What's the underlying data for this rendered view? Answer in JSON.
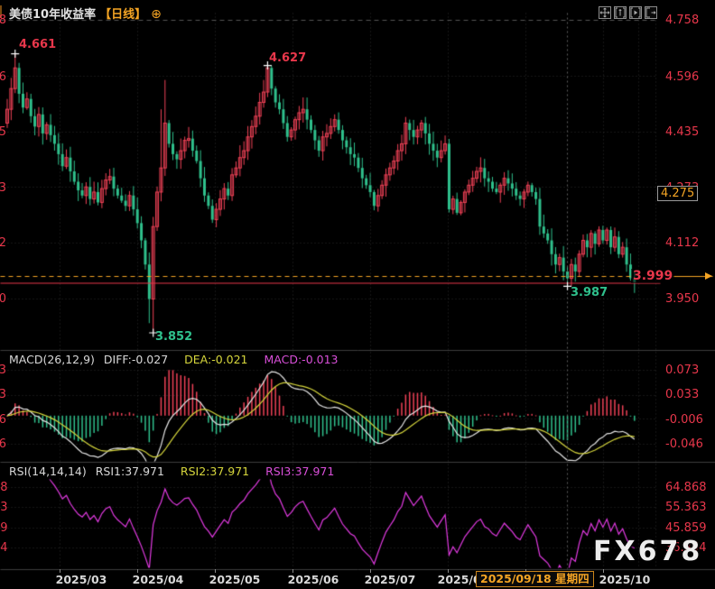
{
  "title": {
    "symbol": "美债10年收益率",
    "period": "【日线】",
    "add_icon": "⊕"
  },
  "toolbar": {
    "icons": [
      "pan-icon",
      "axis-zoom-vertical-icon",
      "axis-play-icon",
      "axis-shift-right-icon"
    ]
  },
  "watermark": "FX678",
  "colors": {
    "background": "#000000",
    "up_candle": "#ef4156",
    "down_candle": "#2fc08c",
    "axis_text": "#e8374b",
    "accent_orange": "#f5a524",
    "dif_line": "#e6e6e6",
    "dea_line": "#d6d63c",
    "rsi_line": "#e23ae2",
    "grid": "#2f2f2f"
  },
  "chart_data": {
    "type": "candlestick",
    "title": "美债10年收益率 日线",
    "x_labels": [
      "2025/03",
      "2025/04",
      "2025/05",
      "2025/06",
      "2025/07",
      "2025/08",
      "2025/10"
    ],
    "selected_date_label": "2025/09/18 星期四",
    "panes": {
      "main": {
        "axis_labels": [
          "4.758",
          "4.596",
          "4.435",
          "4.273",
          "4.112",
          "3.950"
        ],
        "annotations": {
          "high1": "4.661",
          "high2": "4.627",
          "low1": "3.852",
          "low2": "3.987"
        },
        "current_price_label": "3.999",
        "price_box": "4.275",
        "price_lines": [
          {
            "value": 4.02,
            "color": "#f5a524",
            "style": "dashed"
          },
          {
            "value": 3.999,
            "color": "#e8374b",
            "style": "solid"
          }
        ]
      },
      "macd": {
        "header": "MACD(26,12,9)",
        "diff": "DIFF:-0.027",
        "dea": "DEA:-0.021",
        "macd": "MACD:-0.013",
        "axis_labels": [
          "0.073",
          "0.033",
          "-0.006",
          "-0.046"
        ],
        "params": [
          26,
          12,
          9
        ]
      },
      "rsi": {
        "header": "RSI(14,14,14)",
        "rsi1": "RSI1:37.971",
        "rsi2": "RSI2:37.971",
        "rsi3": "RSI3:37.971",
        "axis_labels": [
          "64.868",
          "55.363",
          "45.859",
          "36.354"
        ],
        "params": [
          14,
          14,
          14
        ]
      }
    },
    "series": {
      "first_open": 4.46,
      "closes": [
        4.5,
        4.56,
        4.62,
        4.545,
        4.505,
        4.53,
        4.48,
        4.45,
        4.485,
        4.43,
        4.455,
        4.425,
        4.4,
        4.37,
        4.335,
        4.36,
        4.32,
        4.29,
        4.265,
        4.25,
        4.275,
        4.24,
        4.26,
        4.23,
        4.27,
        4.295,
        4.305,
        4.27,
        4.25,
        4.235,
        4.22,
        4.25,
        4.21,
        4.17,
        4.12,
        4.05,
        3.95,
        4.16,
        4.26,
        4.33,
        4.46,
        4.4,
        4.37,
        4.355,
        4.38,
        4.41,
        4.415,
        4.38,
        4.35,
        4.3,
        4.25,
        4.22,
        4.18,
        4.21,
        4.24,
        4.27,
        4.25,
        4.31,
        4.33,
        4.36,
        4.38,
        4.42,
        4.45,
        4.48,
        4.52,
        4.55,
        4.62,
        4.56,
        4.52,
        4.5,
        4.46,
        4.42,
        4.44,
        4.47,
        4.49,
        4.5,
        4.47,
        4.44,
        4.41,
        4.38,
        4.42,
        4.43,
        4.45,
        4.47,
        4.44,
        4.41,
        4.39,
        4.37,
        4.36,
        4.33,
        4.3,
        4.28,
        4.26,
        4.22,
        4.25,
        4.28,
        4.31,
        4.33,
        4.35,
        4.38,
        4.4,
        4.46,
        4.44,
        4.42,
        4.44,
        4.46,
        4.43,
        4.4,
        4.38,
        4.36,
        4.38,
        4.4,
        4.21,
        4.24,
        4.2,
        4.23,
        4.26,
        4.28,
        4.3,
        4.32,
        4.33,
        4.3,
        4.29,
        4.27,
        4.26,
        4.28,
        4.3,
        4.285,
        4.27,
        4.25,
        4.24,
        4.26,
        4.28,
        4.26,
        4.24,
        4.16,
        4.14,
        4.12,
        4.08,
        4.05,
        4.07,
        4.03,
        4.01,
        4.05,
        4.03,
        4.08,
        4.12,
        4.1,
        4.14,
        4.11,
        4.15,
        4.12,
        4.15,
        4.1,
        4.13,
        4.08,
        4.1,
        4.05,
        4.01,
        3.999
      ],
      "wick_overrides": {
        "2": {
          "high": 4.661
        },
        "36": {
          "low": 3.88
        },
        "37": {
          "low": 3.852
        },
        "39": {
          "high": 4.5
        },
        "40": {
          "high": 4.585
        },
        "66": {
          "high": 4.627
        },
        "142": {
          "low": 3.987
        }
      },
      "markers": [
        {
          "index": 2,
          "price": 4.661
        },
        {
          "index": 37,
          "price": 3.852
        },
        {
          "index": 66,
          "price": 4.627
        },
        {
          "index": 142,
          "price": 3.987
        }
      ]
    },
    "crosshair": {
      "index": 142,
      "date": "2025/09/18 星期四"
    }
  }
}
